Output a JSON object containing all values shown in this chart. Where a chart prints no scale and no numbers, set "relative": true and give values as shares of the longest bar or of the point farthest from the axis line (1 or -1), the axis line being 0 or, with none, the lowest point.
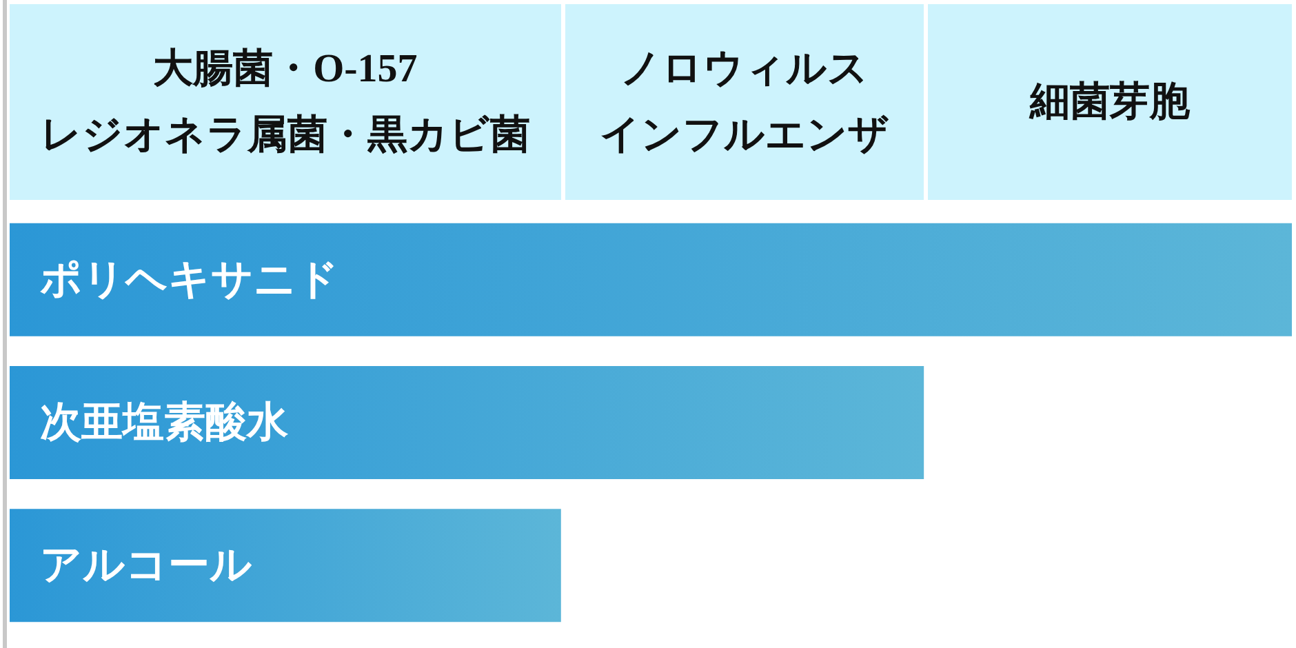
{
  "chart_data": [
    {
      "type": "other",
      "annotations": [
        "大腸菌・O-157",
        "レジオネラ属菌・黒カビ菌"
      ]
    },
    {
      "type": "other",
      "annotations": [
        "ノロウィルス",
        "インフルエンザ"
      ]
    },
    {
      "type": "other",
      "annotations": [
        "細菌芽胞"
      ]
    },
    {
      "type": "bar",
      "orientation": "horizontal",
      "relative": true,
      "categories": [
        "ポリヘキサニド",
        "次亜塩素酸水",
        "アルコール"
      ],
      "values": [
        1,
        0.713,
        0.43
      ],
      "color": "#2b97d6"
    }
  ]
}
